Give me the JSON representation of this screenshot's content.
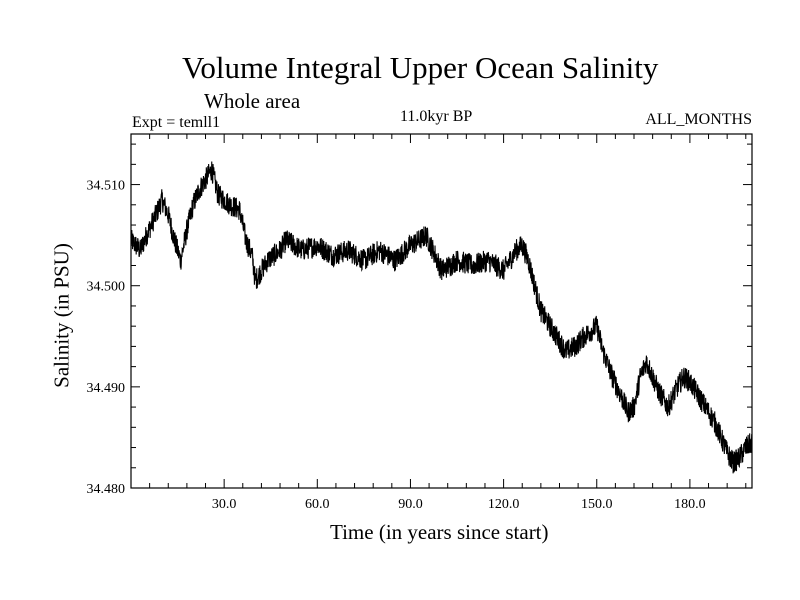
{
  "header": {
    "title": "Volume Integral Upper Ocean Salinity",
    "subtitle": "Whole area",
    "experiment": "Expt = temll1",
    "period": "11.0kyr BP",
    "months": "ALL_MONTHS"
  },
  "chart_data": {
    "type": "line",
    "title": "Volume Integral Upper Ocean Salinity",
    "xlabel": "Time (in years since start)",
    "ylabel": "Salinity (in PSU)",
    "xlim": [
      0,
      200
    ],
    "ylim": [
      34.48,
      34.515
    ],
    "xticks": [
      30,
      60,
      90,
      120,
      150,
      180
    ],
    "xtick_labels": [
      "30.0",
      "60.0",
      "90.0",
      "120.0",
      "150.0",
      "180.0"
    ],
    "yticks": [
      34.48,
      34.49,
      34.5,
      34.51
    ],
    "ytick_labels": [
      "34.480",
      "34.490",
      "34.500",
      "34.510"
    ],
    "series": [
      {
        "name": "salinity",
        "x": [
          0,
          3,
          5,
          8,
          10,
          12,
          14,
          16,
          18,
          20,
          22,
          24,
          26,
          28,
          30,
          32,
          35,
          37,
          39,
          40,
          42,
          44,
          46,
          48,
          50,
          55,
          60,
          65,
          70,
          75,
          80,
          85,
          90,
          93,
          95,
          98,
          100,
          105,
          110,
          115,
          120,
          124,
          126,
          128,
          130,
          132,
          135,
          138,
          140,
          143,
          146,
          148,
          150,
          152,
          155,
          158,
          160,
          162,
          164,
          166,
          168,
          170,
          173,
          176,
          178,
          180,
          183,
          186,
          188,
          190,
          192,
          194,
          196,
          198,
          200
        ],
        "values": [
          34.5045,
          34.5035,
          34.505,
          34.507,
          34.5085,
          34.507,
          34.5045,
          34.5025,
          34.5055,
          34.508,
          34.5095,
          34.5105,
          34.5115,
          34.509,
          34.5085,
          34.508,
          34.5075,
          34.5045,
          34.503,
          34.5005,
          34.5015,
          34.5025,
          34.503,
          34.5035,
          34.5045,
          34.5035,
          34.504,
          34.503,
          34.5035,
          34.5025,
          34.5035,
          34.5025,
          34.504,
          34.5045,
          34.505,
          34.503,
          34.5015,
          34.5025,
          34.502,
          34.5025,
          34.5015,
          34.5035,
          34.504,
          34.5025,
          34.5,
          34.4975,
          34.496,
          34.4945,
          34.4935,
          34.494,
          34.495,
          34.4955,
          34.496,
          34.4935,
          34.491,
          34.489,
          34.4875,
          34.488,
          34.491,
          34.4925,
          34.491,
          34.4895,
          34.488,
          34.49,
          34.491,
          34.4905,
          34.489,
          34.4875,
          34.4865,
          34.485,
          34.4835,
          34.4825,
          34.483,
          34.484,
          34.4845
        ]
      }
    ]
  }
}
